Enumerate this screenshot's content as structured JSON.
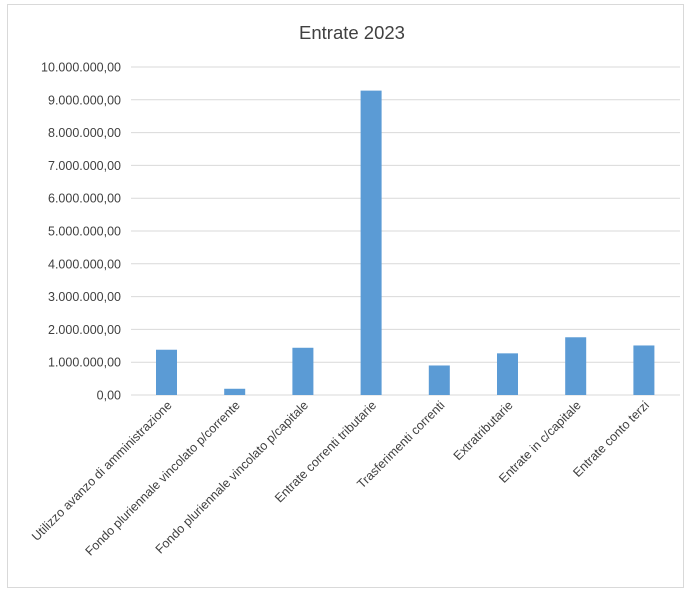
{
  "chart_data": {
    "type": "bar",
    "title": "Entrate 2023",
    "categories": [
      "Utilizzo avanzo di amministrazione",
      "Fondo pluriennale vincolato p/corrente",
      "Fondo pluriennale vincolato p/capitale",
      "Entrate correnti tributarie",
      "Trasferimenti correnti",
      "Extratributarie",
      "Entrate in c/capitale",
      "Entrate conto terzi"
    ],
    "values": [
      1380000,
      190000,
      1440000,
      9280000,
      900000,
      1270000,
      1760000,
      1510000
    ],
    "ylim": [
      0,
      10000000
    ],
    "yticks": [
      {
        "value": 0,
        "label": "0,00"
      },
      {
        "value": 1000000,
        "label": "1.000.000,00"
      },
      {
        "value": 2000000,
        "label": "2.000.000,00"
      },
      {
        "value": 3000000,
        "label": "3.000.000,00"
      },
      {
        "value": 4000000,
        "label": "4.000.000,00"
      },
      {
        "value": 5000000,
        "label": "5.000.000,00"
      },
      {
        "value": 6000000,
        "label": "6.000.000,00"
      },
      {
        "value": 7000000,
        "label": "7.000.000,00"
      },
      {
        "value": 8000000,
        "label": "8.000.000,00"
      },
      {
        "value": 9000000,
        "label": "9.000.000,00"
      },
      {
        "value": 10000000,
        "label": "10.000.000,00"
      }
    ],
    "grid": true,
    "legend": "none",
    "bar_color": "#5b9bd5"
  }
}
